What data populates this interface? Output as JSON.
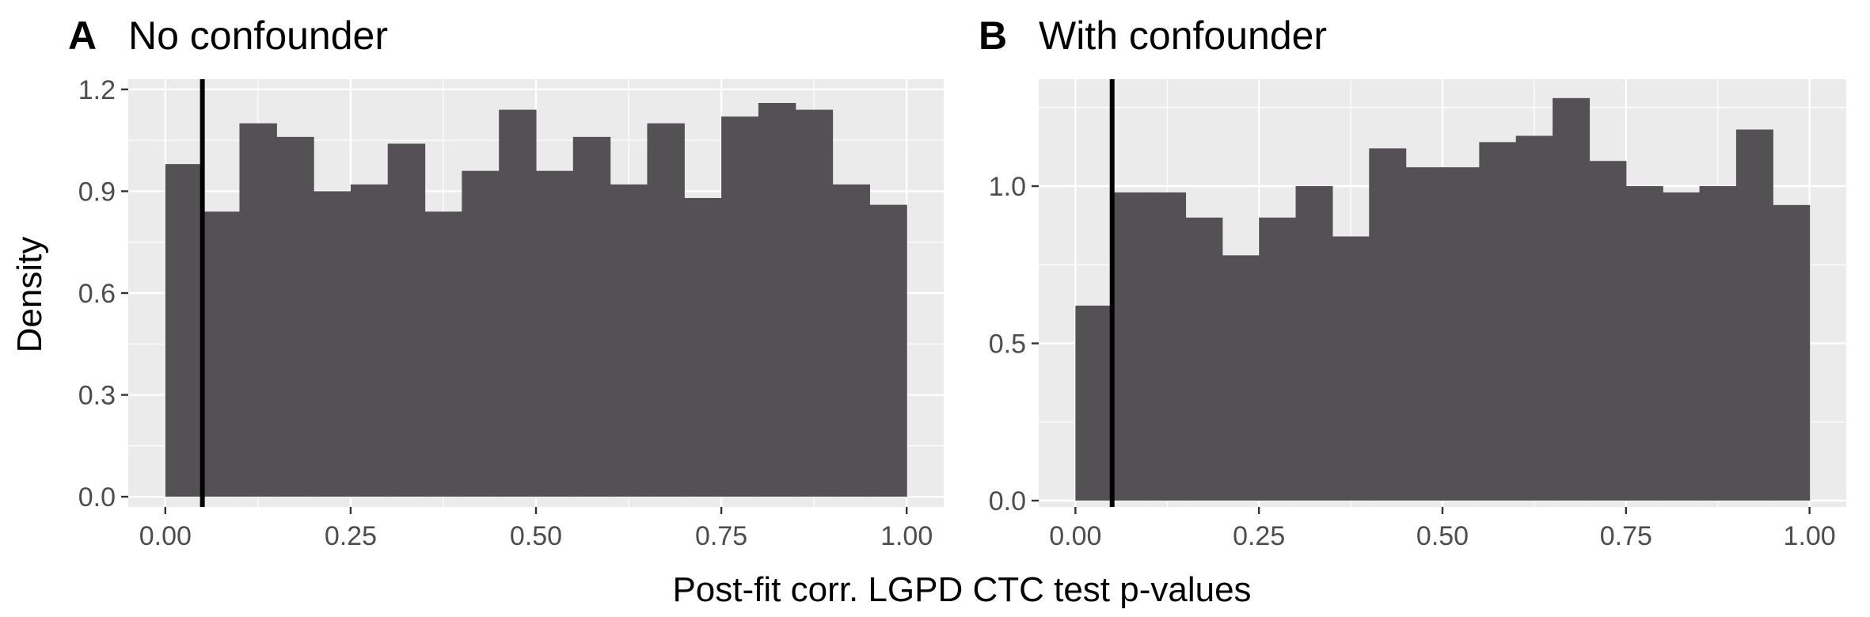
{
  "figure": {
    "xlabel": "Post-fit corr. LGPD CTC test p-values",
    "ylabel": "Density"
  },
  "colors": {
    "panel_background": "#ebebeb",
    "grid": "#ffffff",
    "bar_fill": "#535154",
    "reference_line": "#000000",
    "tick_text": "#4d4d4d",
    "tick_mark": "#333333"
  },
  "chart_data": [
    {
      "type": "bar",
      "tag": "A",
      "title": "No confounder",
      "bin_edges": [
        0,
        0.05,
        0.1,
        0.15,
        0.2,
        0.25,
        0.3,
        0.35,
        0.4,
        0.45,
        0.5,
        0.55,
        0.6,
        0.65,
        0.7,
        0.75,
        0.8,
        0.85,
        0.9,
        0.95,
        1.0
      ],
      "values": [
        0.98,
        0.84,
        1.1,
        1.06,
        0.9,
        0.92,
        1.04,
        0.84,
        0.96,
        1.14,
        0.96,
        1.06,
        0.92,
        1.1,
        0.88,
        1.12,
        1.16,
        1.14,
        0.92,
        0.86
      ],
      "xlim": [
        -0.05,
        1.05
      ],
      "ylim": [
        -0.03,
        1.23
      ],
      "x_ticks": [
        0,
        0.25,
        0.5,
        0.75,
        1.0
      ],
      "x_tick_labels": [
        "0.00",
        "0.25",
        "0.50",
        "0.75",
        "1.00"
      ],
      "y_ticks": [
        0,
        0.3,
        0.6,
        0.9,
        1.2
      ],
      "y_tick_labels": [
        "0.0",
        "0.3",
        "0.6",
        "0.9",
        "1.2"
      ],
      "reference_line_x": 0.05,
      "grid": true
    },
    {
      "type": "bar",
      "tag": "B",
      "title": "With confounder",
      "bin_edges": [
        0,
        0.05,
        0.1,
        0.15,
        0.2,
        0.25,
        0.3,
        0.35,
        0.4,
        0.45,
        0.5,
        0.55,
        0.6,
        0.65,
        0.7,
        0.75,
        0.8,
        0.85,
        0.9,
        0.95,
        1.0
      ],
      "values": [
        0.62,
        0.98,
        0.98,
        0.9,
        0.78,
        0.9,
        1.0,
        0.84,
        1.12,
        1.06,
        1.06,
        1.14,
        1.16,
        1.28,
        1.08,
        1.0,
        0.98,
        1.0,
        1.18,
        0.94
      ],
      "xlim": [
        -0.05,
        1.05
      ],
      "ylim": [
        -0.02,
        1.34
      ],
      "x_ticks": [
        0,
        0.25,
        0.5,
        0.75,
        1.0
      ],
      "x_tick_labels": [
        "0.00",
        "0.25",
        "0.50",
        "0.75",
        "1.00"
      ],
      "y_ticks": [
        0,
        0.5,
        1.0
      ],
      "y_tick_labels": [
        "0.0",
        "0.5",
        "1.0"
      ],
      "reference_line_x": 0.05,
      "grid": true
    }
  ]
}
